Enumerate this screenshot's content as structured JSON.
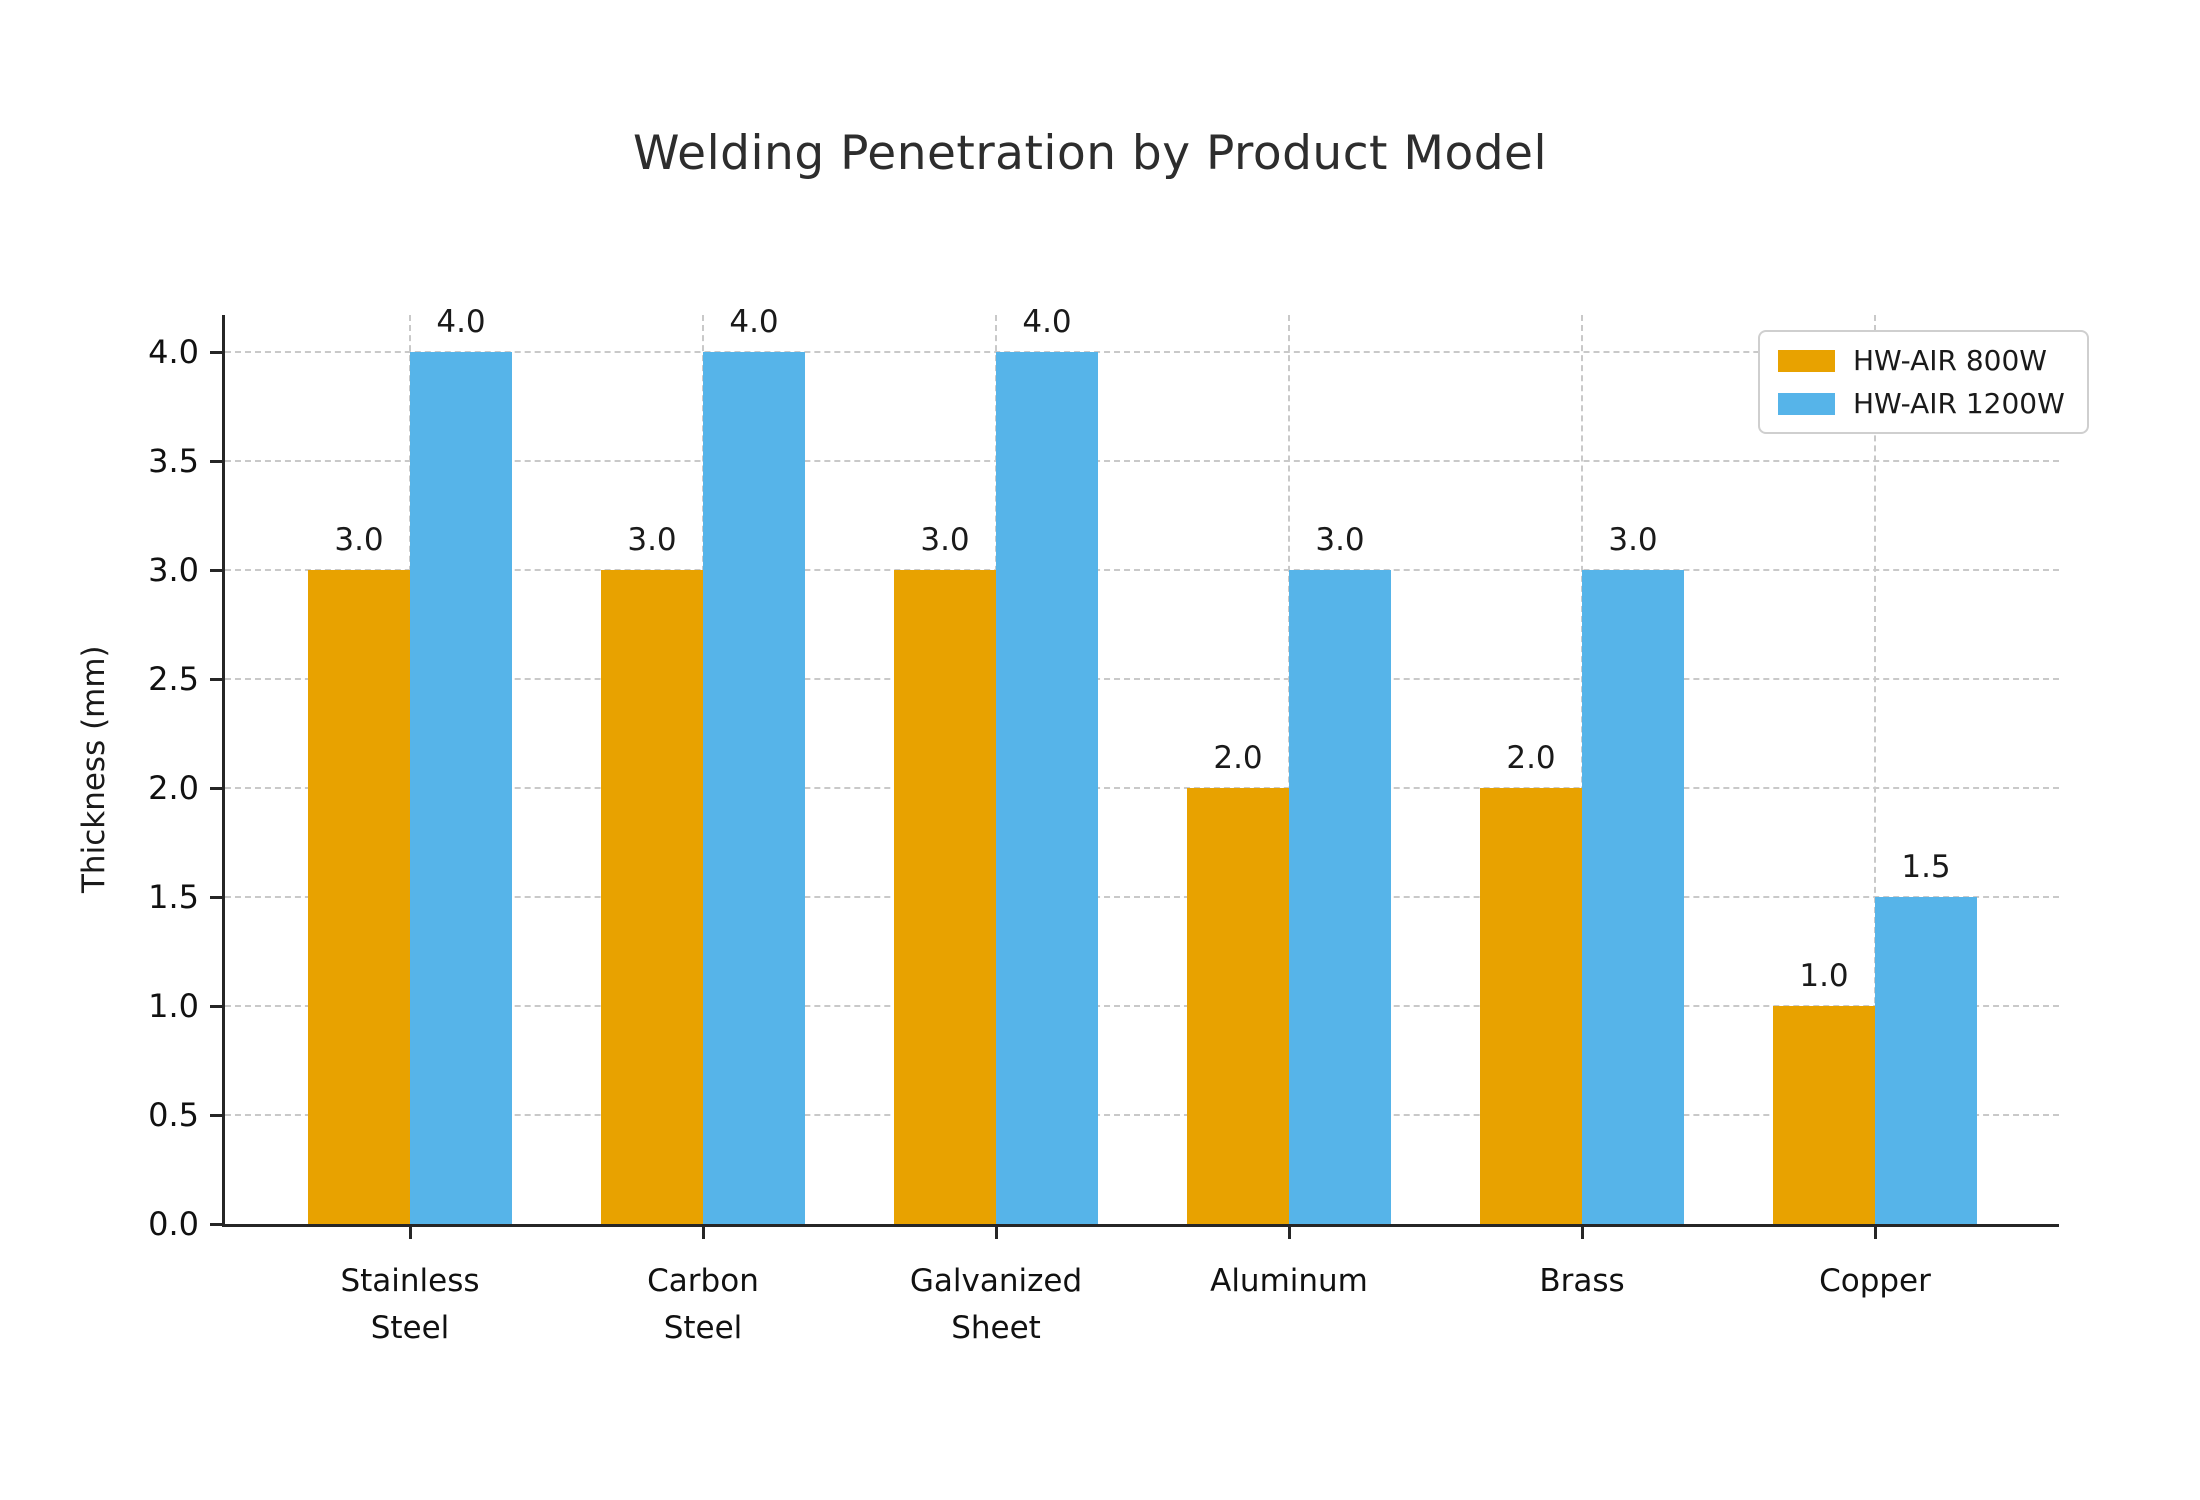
{
  "chart_data": {
    "type": "bar",
    "title": "Welding Penetration by Product Model",
    "xlabel": "",
    "ylabel": "Thickness (mm)",
    "categories": [
      "Stainless\nSteel",
      "Carbon\nSteel",
      "Galvanized\nSheet",
      "Aluminum",
      "Brass",
      "Copper"
    ],
    "series": [
      {
        "name": "HW-AIR 800W",
        "color": "#E8A200",
        "values": [
          3.0,
          3.0,
          3.0,
          2.0,
          2.0,
          1.0
        ]
      },
      {
        "name": "HW-AIR 1200W",
        "color": "#56B4E9",
        "values": [
          4.0,
          4.0,
          4.0,
          3.0,
          3.0,
          1.5
        ]
      }
    ],
    "bar_value_labels": [
      "3.0",
      "4.0",
      "3.0",
      "4.0",
      "3.0",
      "4.0",
      "2.0",
      "3.0",
      "2.0",
      "3.0",
      "1.0",
      "1.5"
    ],
    "ytick_labels": [
      "0.0",
      "0.5",
      "1.0",
      "1.5",
      "2.0",
      "2.5",
      "3.0",
      "3.5",
      "4.0"
    ],
    "yticks": [
      0,
      0.5,
      1,
      1.5,
      2,
      2.5,
      3,
      3.5,
      4
    ],
    "ylim": [
      0,
      4.17
    ],
    "grid": "dashed horizontal lines at 0.5 steps and dashed vertical lines at category centers",
    "legend_position": "upper right"
  }
}
